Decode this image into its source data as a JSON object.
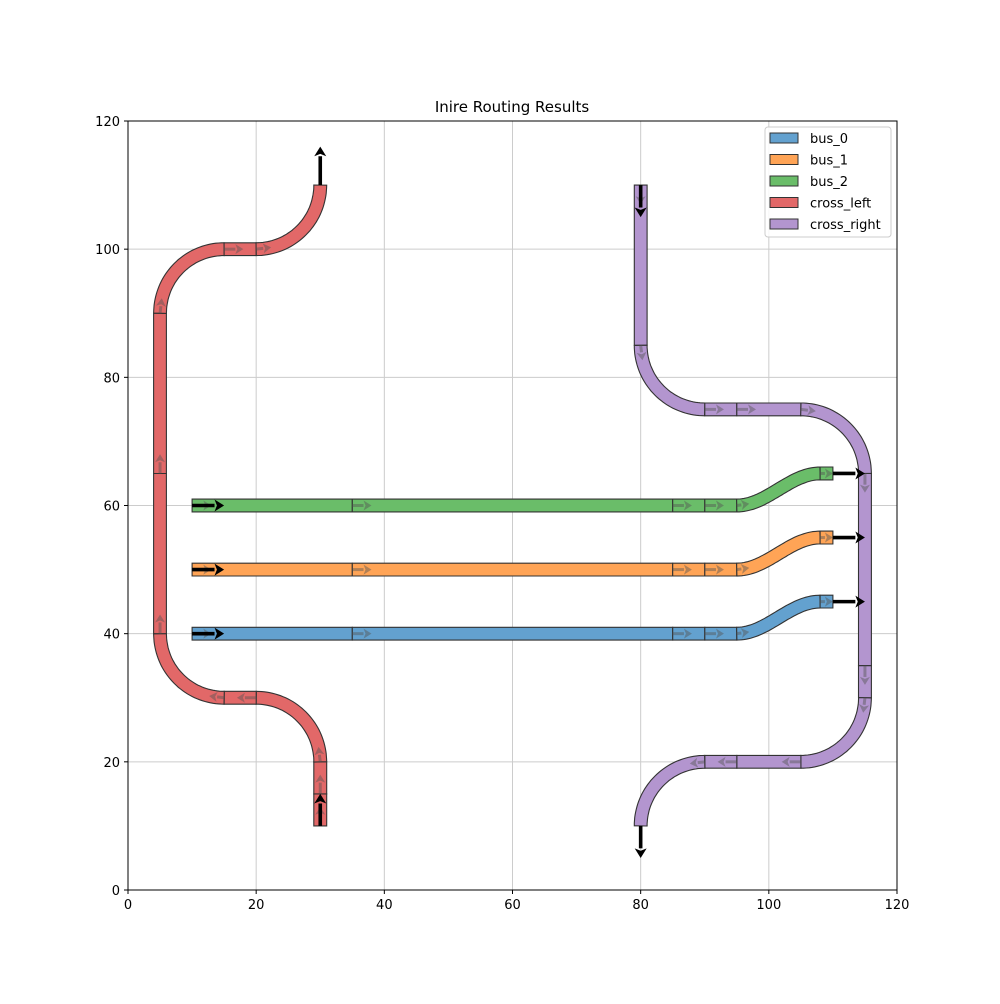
{
  "chart_data": {
    "type": "diagram-routes",
    "title": "Inire Routing Results",
    "xlim": [
      0,
      120
    ],
    "ylim": [
      0,
      120
    ],
    "xticks": [
      0,
      20,
      40,
      60,
      80,
      100,
      120
    ],
    "yticks": [
      0,
      20,
      40,
      60,
      80,
      100,
      120
    ],
    "grid": true,
    "legend_position": "top-right",
    "route_width": 2,
    "routes": [
      {
        "name": "bus_0",
        "color": "#63a1cf",
        "start_arrow": [
          [
            10,
            40
          ],
          [
            15,
            40
          ]
        ],
        "end_arrow": [
          [
            110,
            45
          ],
          [
            115,
            45
          ]
        ],
        "segments": [
          {
            "type": "line",
            "p": [
              [
                10,
                40
              ],
              [
                35,
                40
              ]
            ]
          },
          {
            "type": "line",
            "p": [
              [
                35,
                40
              ],
              [
                85,
                40
              ]
            ]
          },
          {
            "type": "line",
            "p": [
              [
                85,
                40
              ],
              [
                90,
                40
              ]
            ]
          },
          {
            "type": "line",
            "p": [
              [
                90,
                40
              ],
              [
                95,
                40
              ]
            ]
          },
          {
            "type": "sbend",
            "p": [
              [
                95,
                40
              ],
              [
                108,
                45
              ]
            ]
          },
          {
            "type": "line",
            "p": [
              [
                108,
                45
              ],
              [
                110,
                45
              ]
            ]
          }
        ]
      },
      {
        "name": "bus_1",
        "color": "#ffa456",
        "start_arrow": [
          [
            10,
            50
          ],
          [
            15,
            50
          ]
        ],
        "end_arrow": [
          [
            110,
            55
          ],
          [
            115,
            55
          ]
        ],
        "segments": [
          {
            "type": "line",
            "p": [
              [
                10,
                50
              ],
              [
                35,
                50
              ]
            ]
          },
          {
            "type": "line",
            "p": [
              [
                35,
                50
              ],
              [
                85,
                50
              ]
            ]
          },
          {
            "type": "line",
            "p": [
              [
                85,
                50
              ],
              [
                90,
                50
              ]
            ]
          },
          {
            "type": "line",
            "p": [
              [
                90,
                50
              ],
              [
                95,
                50
              ]
            ]
          },
          {
            "type": "sbend",
            "p": [
              [
                95,
                50
              ],
              [
                108,
                55
              ]
            ]
          },
          {
            "type": "line",
            "p": [
              [
                108,
                55
              ],
              [
                110,
                55
              ]
            ]
          }
        ]
      },
      {
        "name": "bus_2",
        "color": "#6abd69",
        "start_arrow": [
          [
            10,
            60
          ],
          [
            15,
            60
          ]
        ],
        "end_arrow": [
          [
            110,
            65
          ],
          [
            115,
            65
          ]
        ],
        "segments": [
          {
            "type": "line",
            "p": [
              [
                10,
                60
              ],
              [
                35,
                60
              ]
            ]
          },
          {
            "type": "line",
            "p": [
              [
                35,
                60
              ],
              [
                85,
                60
              ]
            ]
          },
          {
            "type": "line",
            "p": [
              [
                85,
                60
              ],
              [
                90,
                60
              ]
            ]
          },
          {
            "type": "line",
            "p": [
              [
                90,
                60
              ],
              [
                95,
                60
              ]
            ]
          },
          {
            "type": "sbend",
            "p": [
              [
                95,
                60
              ],
              [
                108,
                65
              ]
            ]
          },
          {
            "type": "line",
            "p": [
              [
                108,
                65
              ],
              [
                110,
                65
              ]
            ]
          }
        ]
      },
      {
        "name": "cross_left",
        "color": "#e26868",
        "start_arrow": [
          [
            30,
            10
          ],
          [
            30,
            15
          ]
        ],
        "end_arrow": [
          [
            30,
            110
          ],
          [
            30,
            116
          ]
        ],
        "segments": [
          {
            "type": "line",
            "p": [
              [
                30,
                10
              ],
              [
                30,
                15
              ]
            ]
          },
          {
            "type": "line",
            "p": [
              [
                30,
                15
              ],
              [
                30,
                20
              ]
            ]
          },
          {
            "type": "arc",
            "c": [
              20,
              20
            ],
            "r": 10,
            "a": [
              0,
              90
            ]
          },
          {
            "type": "line",
            "p": [
              [
                20,
                30
              ],
              [
                15,
                30
              ]
            ]
          },
          {
            "type": "arc",
            "c": [
              15,
              40
            ],
            "r": 10,
            "a": [
              -90,
              -180
            ]
          },
          {
            "type": "line",
            "p": [
              [
                5,
                40
              ],
              [
                5,
                65
              ]
            ]
          },
          {
            "type": "line",
            "p": [
              [
                5,
                65
              ],
              [
                5,
                90
              ]
            ]
          },
          {
            "type": "arc",
            "c": [
              15,
              90
            ],
            "r": 10,
            "a": [
              180,
              90
            ]
          },
          {
            "type": "line",
            "p": [
              [
                15,
                100
              ],
              [
                20,
                100
              ]
            ]
          },
          {
            "type": "arc",
            "c": [
              20,
              110
            ],
            "r": 10,
            "a": [
              -90,
              0
            ]
          }
        ]
      },
      {
        "name": "cross_right",
        "color": "#b395cf",
        "start_arrow": [
          [
            80,
            110
          ],
          [
            80,
            105
          ]
        ],
        "end_arrow": [
          [
            80,
            10
          ],
          [
            80,
            5
          ]
        ],
        "segments": [
          {
            "type": "line",
            "p": [
              [
                80,
                110
              ],
              [
                80,
                85
              ]
            ]
          },
          {
            "type": "arc",
            "c": [
              90,
              85
            ],
            "r": 10,
            "a": [
              180,
              270
            ]
          },
          {
            "type": "line",
            "p": [
              [
                90,
                75
              ],
              [
                95,
                75
              ]
            ]
          },
          {
            "type": "line",
            "p": [
              [
                95,
                75
              ],
              [
                105,
                75
              ]
            ]
          },
          {
            "type": "arc",
            "c": [
              105,
              65
            ],
            "r": 10,
            "a": [
              90,
              0
            ]
          },
          {
            "type": "line",
            "p": [
              [
                115,
                65
              ],
              [
                115,
                35
              ]
            ]
          },
          {
            "type": "line",
            "p": [
              [
                115,
                35
              ],
              [
                115,
                30
              ]
            ]
          },
          {
            "type": "arc",
            "c": [
              105,
              30
            ],
            "r": 10,
            "a": [
              0,
              -90
            ]
          },
          {
            "type": "line",
            "p": [
              [
                105,
                20
              ],
              [
                95,
                20
              ]
            ]
          },
          {
            "type": "line",
            "p": [
              [
                95,
                20
              ],
              [
                90,
                20
              ]
            ]
          },
          {
            "type": "arc",
            "c": [
              90,
              10
            ],
            "r": 10,
            "a": [
              90,
              180
            ]
          }
        ]
      }
    ]
  }
}
